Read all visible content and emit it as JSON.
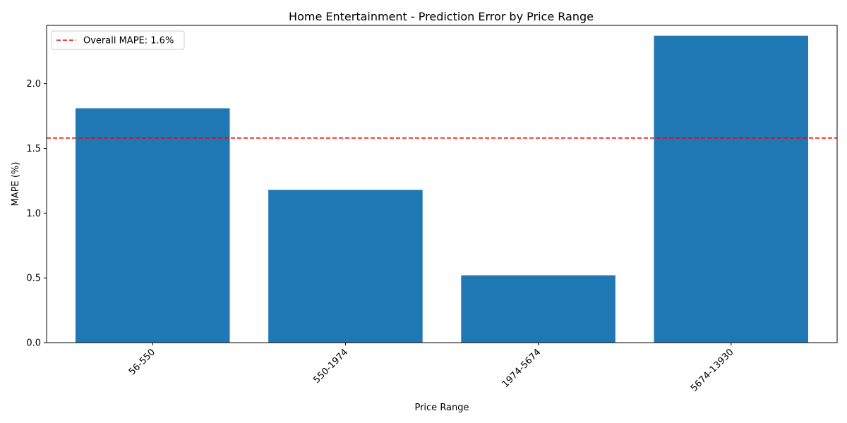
{
  "chart_data": {
    "type": "bar",
    "title": "Home Entertainment - Prediction Error by Price Range",
    "xlabel": "Price Range",
    "ylabel": "MAPE (%)",
    "categories": [
      "56-550",
      "550-1974",
      "1974-5674",
      "5674-13930"
    ],
    "values": [
      1.81,
      1.18,
      0.52,
      2.37
    ],
    "ylim": [
      0,
      2.45
    ],
    "yticks": [
      0.0,
      0.5,
      1.0,
      1.5,
      2.0
    ],
    "ytick_labels": [
      "0.0",
      "0.5",
      "1.0",
      "1.5",
      "2.0"
    ],
    "xtick_rotation_deg": 45,
    "bar_color": "#1f77b4",
    "reference_line": {
      "value": 1.58,
      "label": "Overall MAPE: 1.6%",
      "color": "#ff0000",
      "style": "dashed"
    },
    "legend_position": "top-left",
    "grid": false
  }
}
